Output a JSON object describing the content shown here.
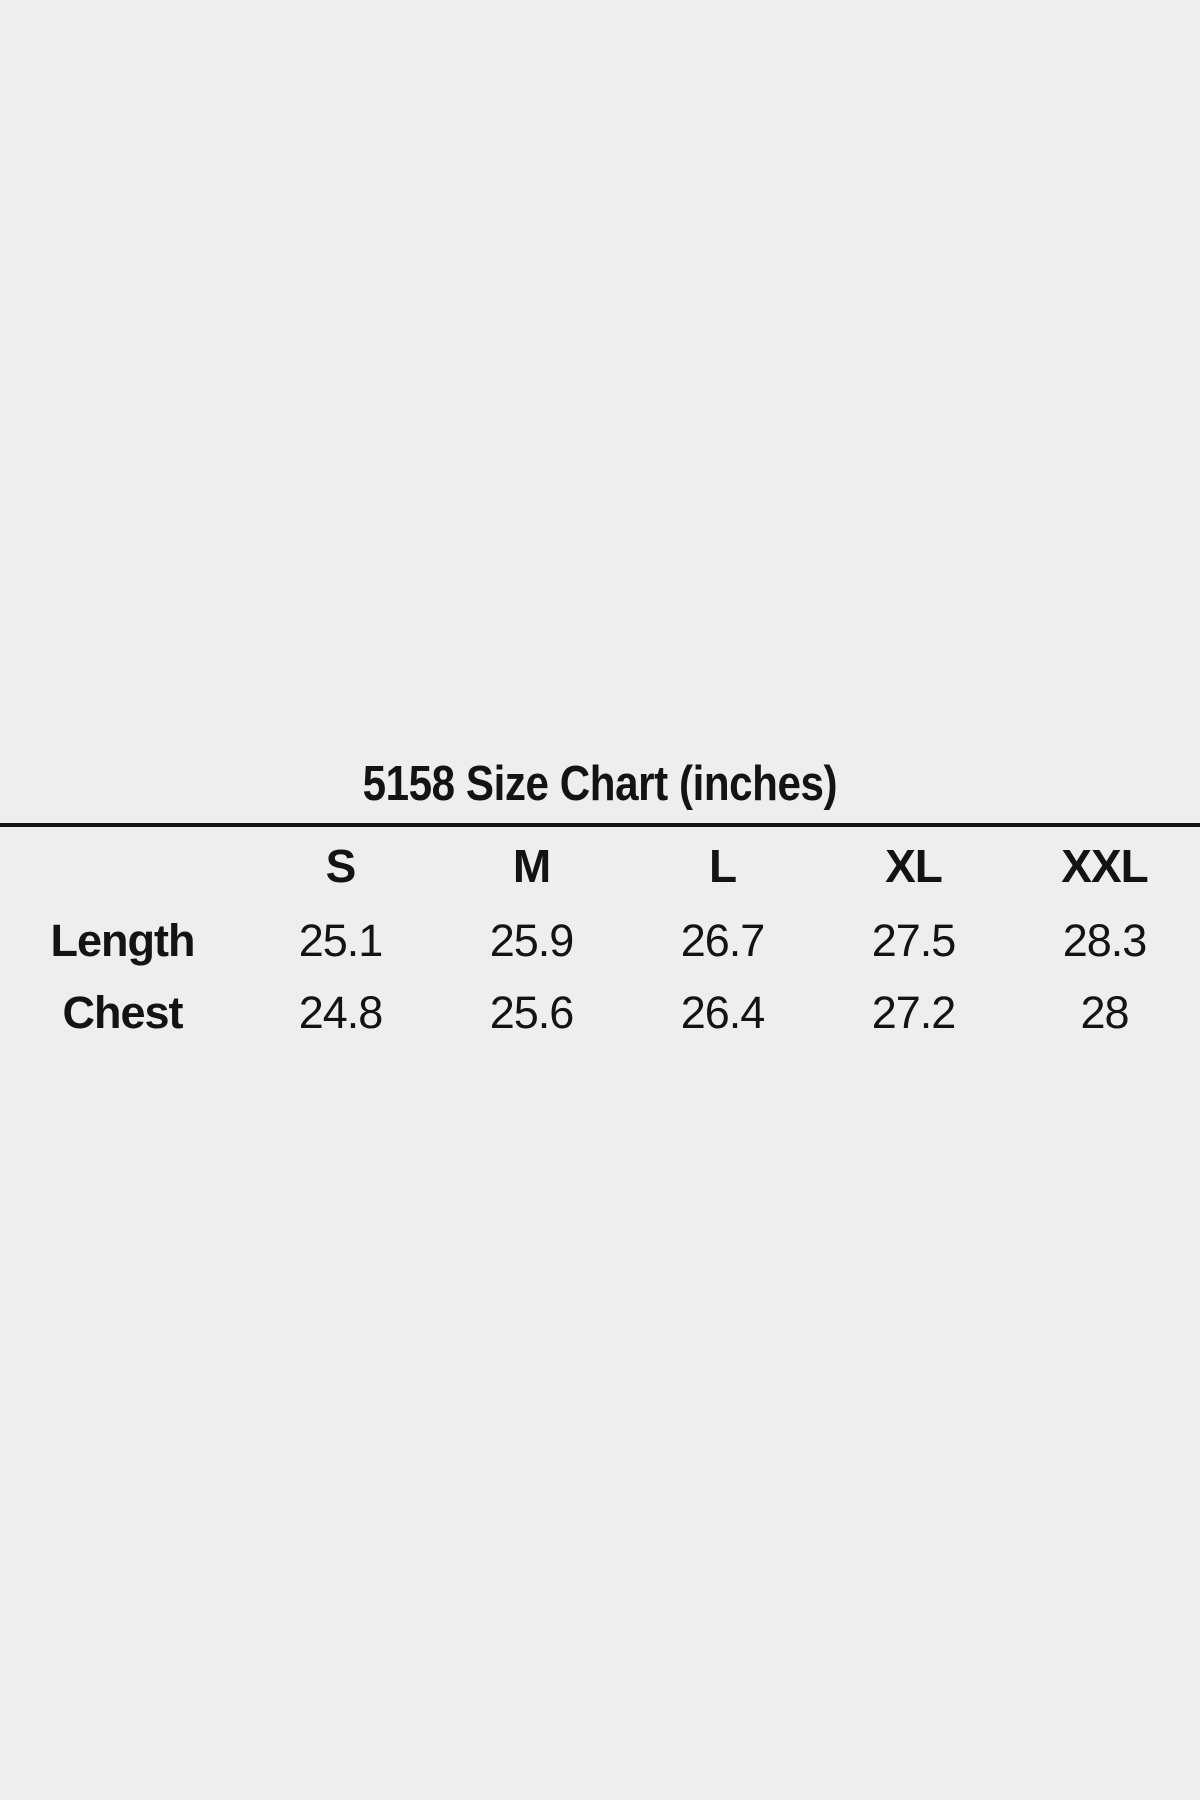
{
  "page": {
    "background_color": "#eeeeee",
    "text_color": "#131313",
    "divider_color": "#161616"
  },
  "chart_data": {
    "type": "table",
    "title": "5158 Size Chart (inches)",
    "unit": "inches",
    "columns": [
      "",
      "S",
      "M",
      "L",
      "XL",
      "XXL"
    ],
    "rows": [
      {
        "label": "Length",
        "values": [
          25.1,
          25.9,
          26.7,
          27.5,
          28.3
        ]
      },
      {
        "label": "Chest",
        "values": [
          24.8,
          25.6,
          26.4,
          27.2,
          28
        ]
      }
    ],
    "layout_hints": {
      "title_position": "top-center",
      "divider_under_title": true,
      "label_column_align": "center",
      "grid": "off"
    }
  }
}
